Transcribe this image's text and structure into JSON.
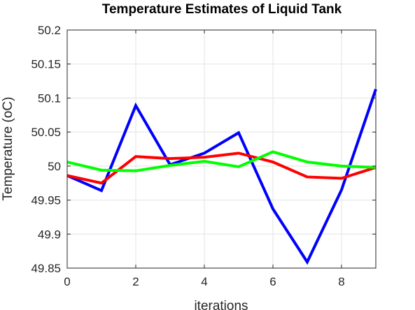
{
  "chart_data": {
    "type": "line",
    "title": "Temperature Estimates of Liquid Tank",
    "xlabel": "iterations",
    "ylabel": "Temperature (oC)",
    "xlim": [
      0,
      9
    ],
    "ylim": [
      49.85,
      50.2
    ],
    "x_ticks": [
      0,
      2,
      4,
      6,
      8
    ],
    "x_tick_labels": [
      "0",
      "2",
      "4",
      "6",
      "8"
    ],
    "y_ticks": [
      49.85,
      49.9,
      49.95,
      50,
      50.05,
      50.1,
      50.15,
      50.2
    ],
    "y_tick_labels": [
      "49.85",
      "49.9",
      "49.95",
      "50",
      "50.05",
      "50.1",
      "50.15",
      "50.2"
    ],
    "grid": true,
    "x": [
      0,
      1,
      2,
      3,
      4,
      5,
      6,
      7,
      8,
      9
    ],
    "series": [
      {
        "color": "#0000ff",
        "values": [
          49.986,
          49.964,
          50.089,
          50.002,
          50.019,
          50.049,
          49.937,
          49.859,
          49.965,
          50.113
        ]
      },
      {
        "color": "#ff0000",
        "values": [
          49.986,
          49.975,
          50.014,
          50.011,
          50.013,
          50.019,
          50.006,
          49.984,
          49.982,
          49.998
        ]
      },
      {
        "color": "#00ff00",
        "values": [
          50.006,
          49.994,
          49.993,
          50.001,
          50.007,
          49.999,
          50.021,
          50.006,
          50.0,
          49.998
        ]
      }
    ]
  }
}
